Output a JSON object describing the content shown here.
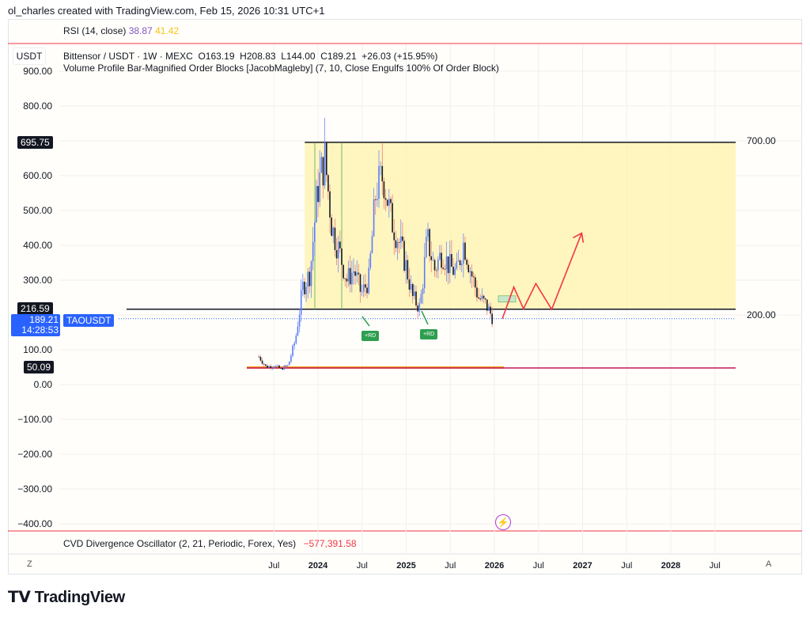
{
  "credit": "ol_charles created with TradingView.com, Feb 15, 2026 10:31 UTC+1",
  "rsi": {
    "label": "RSI (14, close)",
    "v1": "38.87",
    "v2": "41.42",
    "c1": "#7e57c2",
    "c2": "#f5c518"
  },
  "legend": {
    "line1": "Bittensor / USDT · 1W · MEXC  O163.19  H208.83  L144.00  C189.21  +26.03 (+15.95%)",
    "line2": "Volume Profile Bar-Magnified Order Blocks [JacobMagleby] (7, 10, Close Engulfs 100% Of Order Block)"
  },
  "currency": "USDT",
  "cvd": {
    "label": "CVD Divergence Oscillator (2, 21, Periodic, Forex, Yes)",
    "value": "−577,391.58",
    "color": "#f23645"
  },
  "price_tags": {
    "top": "695.75",
    "mid": "216.59",
    "current": "189.21",
    "countdown": "14:28:53",
    "symbol": "TAOUSDT",
    "low": "50.09"
  },
  "badges": [
    "+RD",
    "+RD"
  ],
  "axis_buttons": {
    "left": "Z",
    "right": "A"
  },
  "brand": "TradingView",
  "chart_data": {
    "type": "candlestick",
    "y_ticks": [
      "900.00",
      "800.00",
      "700.00",
      "600.00",
      "500.00",
      "400.00",
      "300.00",
      "200.00",
      "100.00",
      "0.00",
      "−100.00",
      "−200.00",
      "−300.00",
      "−400.00"
    ],
    "y_tick_values": [
      900,
      800,
      700,
      600,
      500,
      400,
      300,
      200,
      100,
      0,
      -100,
      -200,
      -300,
      -400
    ],
    "ylim": [
      -420,
      960
    ],
    "x_ticks": [
      {
        "label": "Jul",
        "t": 2023.5,
        "bold": false
      },
      {
        "label": "2024",
        "t": 2024.0,
        "bold": true
      },
      {
        "label": "Jul",
        "t": 2024.5,
        "bold": false
      },
      {
        "label": "2025",
        "t": 2025.0,
        "bold": true
      },
      {
        "label": "Jul",
        "t": 2025.5,
        "bold": false
      },
      {
        "label": "2026",
        "t": 2026.0,
        "bold": true
      },
      {
        "label": "Jul",
        "t": 2026.5,
        "bold": false
      },
      {
        "label": "2027",
        "t": 2027.0,
        "bold": true
      },
      {
        "label": "Jul",
        "t": 2027.5,
        "bold": false
      },
      {
        "label": "2028",
        "t": 2028.0,
        "bold": true
      },
      {
        "label": "Jul",
        "t": 2028.5,
        "bold": false
      }
    ],
    "monthly_closes_approx": {
      "start": 2023.33,
      "values": [
        80,
        50,
        55,
        45,
        55,
        130,
        280,
        320,
        560,
        650,
        450,
        380,
        300,
        330,
        260,
        300,
        560,
        600,
        480,
        420,
        350,
        250,
        220,
        420,
        330,
        380,
        340,
        320,
        410,
        320,
        250,
        230,
        189
      ]
    },
    "order_block": {
      "top": 695.75,
      "bottom": 216.59,
      "start": 2023.85,
      "color": "#fff3b0"
    },
    "support_low": 50.09,
    "current_price": 189.21,
    "projection_path": [
      [
        2026.09,
        189
      ],
      [
        2026.22,
        280
      ],
      [
        2026.33,
        218
      ],
      [
        2026.47,
        290
      ],
      [
        2026.65,
        216
      ],
      [
        2026.99,
        435
      ]
    ],
    "up_color": "#5b7cfa",
    "down_color": "#131722"
  }
}
